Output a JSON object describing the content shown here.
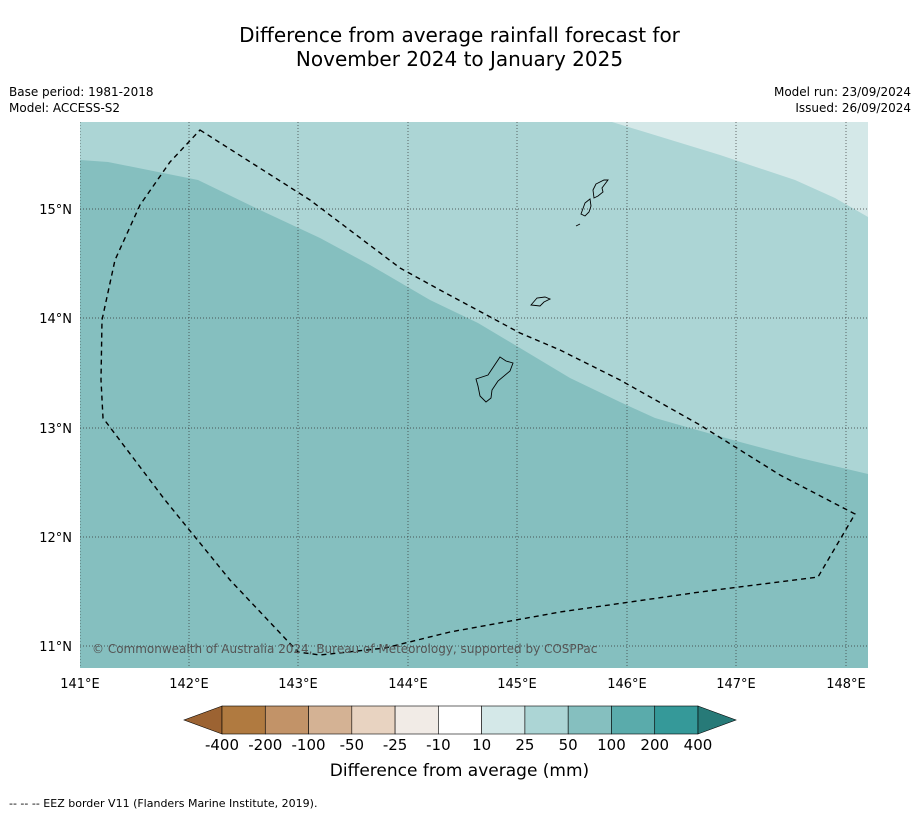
{
  "title": {
    "line1": "Difference from average rainfall forecast for",
    "line2": "November 2024 to January 2025"
  },
  "meta": {
    "base_period": "Base period: 1981-2018",
    "model": "Model: ACCESS-S2",
    "model_run": "Model run: 23/09/2024",
    "issued": "Issued: 26/09/2024"
  },
  "axes": {
    "lon_ticks": [
      "141°E",
      "142°E",
      "143°E",
      "144°E",
      "145°E",
      "146°E",
      "147°E",
      "148°E"
    ],
    "lat_ticks": [
      "15°N",
      "14°N",
      "13°N",
      "12°N",
      "11°N"
    ]
  },
  "map": {
    "lon_range": [
      141.0,
      148.2
    ],
    "lat_range": [
      10.8,
      15.8
    ],
    "copyright": "© Commonwealth of Australia 2024, Bureau of Meteorology, supported by COSPPac",
    "zones": [
      {
        "name": "10 to 25 mm",
        "color": "#d4e8e8"
      },
      {
        "name": "25 to 50 mm",
        "color": "#acd5d5"
      },
      {
        "name": "50 to 100 mm",
        "color": "#85bfbf"
      }
    ]
  },
  "colorbar": {
    "labels": [
      "-400",
      "-200",
      "-100",
      "-50",
      "-25",
      "-10",
      "10",
      "25",
      "50",
      "100",
      "200",
      "400"
    ],
    "colors": [
      "#9c6332",
      "#b07a40",
      "#c29368",
      "#d4b294",
      "#e8d3c1",
      "#f1ebe6",
      "#ffffff",
      "#d4e8e8",
      "#acd5d5",
      "#85bfbf",
      "#5aabab",
      "#359999",
      "#277a78"
    ],
    "title": "Difference from average (mm)"
  },
  "footnote": "--  --  -- EEZ border V11 (Flanders Marine Institute, 2019)."
}
